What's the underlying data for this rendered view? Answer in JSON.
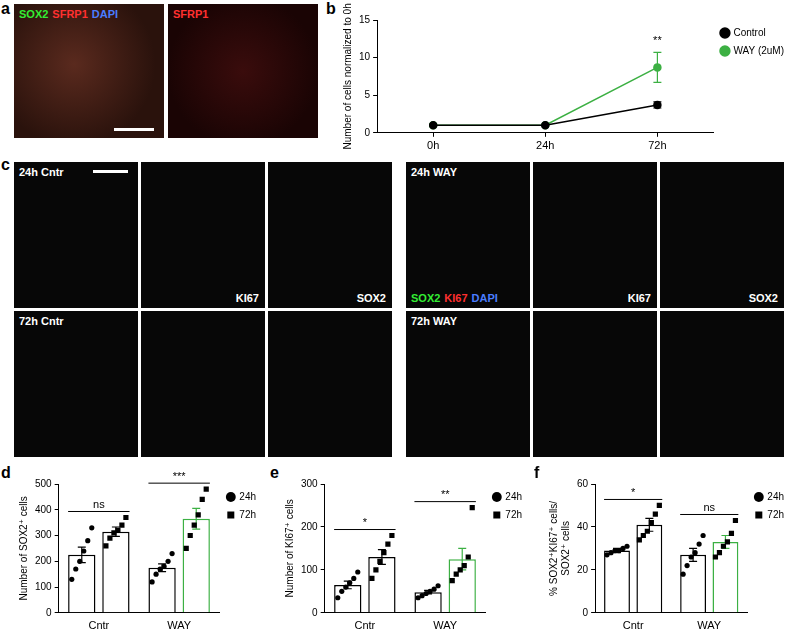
{
  "images": [
    {
      "label": "a",
      "tiles": [
        {
          "caption": [
            {
              "text": "SOX2",
              "color": "#33ee33"
            },
            {
              "text": "SFRP1",
              "color": "#ff3030"
            },
            {
              "text": "DAPI",
              "color": "#4a7dff"
            }
          ]
        },
        {
          "caption": [
            {
              "text": "SFRP1",
              "color": "#ff3030"
            }
          ]
        }
      ]
    },
    {
      "label": "c",
      "groups": [
        {
          "rows": [
            {
              "tiles": [
                {
                  "title": "24h Cntr"
                },
                {
                  "caption": [
                    {
                      "text": "KI67",
                      "color": "#ffffff"
                    }
                  ]
                },
                {
                  "caption": [
                    {
                      "text": "SOX2",
                      "color": "#ffffff"
                    }
                  ]
                }
              ]
            },
            {
              "tiles": [
                {
                  "title": "72h Cntr"
                },
                {},
                {}
              ]
            }
          ]
        },
        {
          "rows": [
            {
              "tiles": [
                {
                  "title": "24h WAY",
                  "caption": [
                    {
                      "text": "SOX2",
                      "color": "#33ee33"
                    },
                    {
                      "text": "KI67",
                      "color": "#ff3030"
                    },
                    {
                      "text": "DAPI",
                      "color": "#4a7dff"
                    }
                  ]
                },
                {
                  "caption": [
                    {
                      "text": "KI67",
                      "color": "#ffffff"
                    }
                  ]
                },
                {
                  "caption": [
                    {
                      "text": "SOX2",
                      "color": "#ffffff"
                    }
                  ]
                }
              ]
            },
            {
              "tiles": [
                {
                  "title": "72h WAY"
                },
                {},
                {}
              ]
            }
          ]
        }
      ]
    }
  ],
  "chart_data": [
    {
      "label": "b",
      "type": "line",
      "ylabel": "Number of cells normalized to 0h",
      "categories": [
        "0h",
        "24h",
        "72h"
      ],
      "series": [
        {
          "name": "Control",
          "color": "#000000",
          "marker": "circle",
          "values": [
            1,
            1,
            3.7
          ],
          "errors": [
            0,
            0,
            0.4
          ]
        },
        {
          "name": "WAY (2uM)",
          "color": "#3cb043",
          "marker": "circle",
          "values": [
            1,
            1,
            8.7
          ],
          "errors": [
            0,
            0,
            2
          ]
        }
      ],
      "ylim": [
        0,
        15
      ],
      "yticks": [
        0,
        5,
        10,
        15
      ],
      "grid": false,
      "legend": "right",
      "annotations": [
        {
          "text": "**",
          "category": "72h"
        }
      ]
    },
    {
      "label": "d",
      "type": "bar",
      "ylabel": "Number of SOX2⁺ cells",
      "categories": [
        "Cntr",
        "WAY"
      ],
      "series": [
        {
          "name": "24h",
          "marker": "circle",
          "colors": [
            "#000000",
            "#000000"
          ],
          "values": [
            225,
            175
          ],
          "errors": [
            30,
            15
          ],
          "points": [
            [
              130,
              170,
              200,
              240,
              280,
              330
            ],
            [
              120,
              150,
              170,
              180,
              200,
              230
            ]
          ]
        },
        {
          "name": "72h",
          "marker": "square",
          "colors": [
            "#000000",
            "#3cb043"
          ],
          "values": [
            315,
            365
          ],
          "errors": [
            18,
            40
          ],
          "points": [
            [
              260,
              290,
              310,
              320,
              340,
              370
            ],
            [
              250,
              300,
              340,
              380,
              440,
              480
            ]
          ]
        }
      ],
      "ylim": [
        0,
        500
      ],
      "yticks": [
        0,
        100,
        200,
        300,
        400,
        500
      ],
      "grid": false,
      "legend": "right",
      "annotations": [
        {
          "text": "ns",
          "category": "Cntr"
        },
        {
          "text": "***",
          "category": "WAY"
        }
      ]
    },
    {
      "label": "e",
      "type": "bar",
      "ylabel": "Number of KI67⁺ cells",
      "categories": [
        "Cntr",
        "WAY"
      ],
      "series": [
        {
          "name": "24h",
          "marker": "circle",
          "colors": [
            "#000000",
            "#000000"
          ],
          "values": [
            65,
            48
          ],
          "errors": [
            9,
            4
          ],
          "points": [
            [
              35,
              50,
              60,
              70,
              80,
              95
            ],
            [
              35,
              40,
              45,
              50,
              55,
              63
            ]
          ]
        },
        {
          "name": "72h",
          "marker": "square",
          "colors": [
            "#000000",
            "#3cb043"
          ],
          "values": [
            130,
            125
          ],
          "errors": [
            17,
            25
          ],
          "points": [
            [
              80,
              100,
              120,
              140,
              160,
              180
            ],
            [
              75,
              90,
              100,
              110,
              130,
              245
            ]
          ]
        }
      ],
      "ylim": [
        0,
        300
      ],
      "yticks": [
        0,
        100,
        200,
        300
      ],
      "grid": false,
      "legend": "right",
      "annotations": [
        {
          "text": "*",
          "category": "Cntr"
        },
        {
          "text": "**",
          "category": "WAY"
        }
      ]
    },
    {
      "label": "f",
      "type": "bar",
      "ylabel": "% SOX2⁺KI67⁺ cells/ SOX2⁺ cells",
      "categories": [
        "Cntr",
        "WAY"
      ],
      "series": [
        {
          "name": "24h",
          "marker": "circle",
          "colors": [
            "#000000",
            "#000000"
          ],
          "values": [
            29,
            27
          ],
          "errors": [
            1,
            3
          ],
          "points": [
            [
              27,
              28,
              29,
              29,
              30,
              31
            ],
            [
              18,
              22,
              26,
              28,
              32,
              36
            ]
          ]
        },
        {
          "name": "72h",
          "marker": "square",
          "colors": [
            "#000000",
            "#3cb043"
          ],
          "values": [
            41,
            33
          ],
          "errors": [
            3,
            3
          ],
          "points": [
            [
              34,
              36,
              38,
              42,
              46,
              50
            ],
            [
              26,
              28,
              31,
              33,
              37,
              43
            ]
          ]
        }
      ],
      "ylim": [
        0,
        60
      ],
      "yticks": [
        0,
        20,
        40,
        60
      ],
      "grid": false,
      "legend": "right",
      "annotations": [
        {
          "text": "*",
          "category": "Cntr"
        },
        {
          "text": "ns",
          "category": "WAY"
        }
      ]
    }
  ]
}
